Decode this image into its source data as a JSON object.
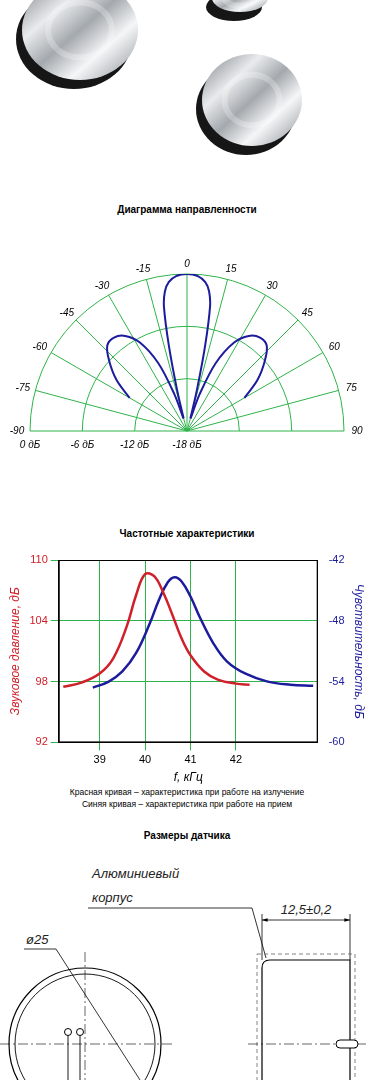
{
  "chart_data": [
    {
      "type": "polar",
      "title": "Диаграмма направленности",
      "thetalim": [
        -90,
        90
      ],
      "thetaticks": [
        -90,
        -75,
        -60,
        -45,
        -30,
        -15,
        0,
        15,
        30,
        45,
        60,
        75,
        90
      ],
      "rlim": [
        -18,
        0
      ],
      "rticks": [
        {
          "value": 0,
          "label": "0 дБ"
        },
        {
          "value": -6,
          "label": "-6 дБ"
        },
        {
          "value": -12,
          "label": "-12 дБ"
        },
        {
          "value": -18,
          "label": "-18 дБ"
        }
      ],
      "grid": true,
      "series": [
        {
          "color": "#1c1c9c",
          "theta": [
            -60,
            -54,
            -48,
            -43,
            -38,
            -33,
            -28,
            -23,
            -19,
            -16
          ],
          "values": [
            -10.4,
            -8,
            -6,
            -4.6,
            -4.4,
            -5,
            -6.5,
            -9.5,
            -13.5,
            -16.5
          ]
        },
        {
          "color": "#1c1c9c",
          "theta": [
            -15,
            -13.5,
            -12,
            -10.5,
            -9,
            -7,
            -4,
            0,
            4,
            7,
            9,
            10.5,
            12,
            13.5,
            15
          ],
          "values": [
            -16.5,
            -13,
            -8,
            -3.5,
            -1.8,
            -0.8,
            -0.2,
            0,
            -0.2,
            -0.8,
            -1.8,
            -3.5,
            -8,
            -13,
            -16.5
          ]
        },
        {
          "color": "#1c1c9c",
          "theta": [
            16,
            19,
            23,
            28,
            33,
            38,
            43,
            48,
            54,
            60
          ],
          "values": [
            -16.5,
            -13.5,
            -9.5,
            -6.5,
            -5,
            -4.4,
            -4.6,
            -6,
            -8,
            -10.4
          ]
        }
      ]
    },
    {
      "type": "line",
      "title": "Частотные характеристики",
      "x_label": "f, кГц",
      "y_label": "Звуковое давление, дБ",
      "y2_label": "Чувствительность, дБ",
      "xlim": [
        38.1,
        43.8
      ],
      "xticks": [
        39,
        40,
        41,
        42
      ],
      "ylim": [
        92,
        110
      ],
      "yticks": [
        92,
        98,
        104,
        110
      ],
      "y2lim": [
        -60,
        -42
      ],
      "y2ticks": [
        -60,
        -54,
        -48,
        -42
      ],
      "grid": true,
      "annotations": [
        "Красная кривая – характеристика при работе на излучение",
        "Синяя кривая – характеристика при работе на прием"
      ],
      "series": [
        {
          "color": "#d0202a",
          "x": [
            38.2,
            38.6,
            39.0,
            39.3,
            39.6,
            39.8,
            40.0,
            40.2,
            40.4,
            40.6,
            40.8,
            41.0,
            41.3,
            41.6,
            42.0,
            42.3
          ],
          "values": [
            97.5,
            97.9,
            98.8,
            100.3,
            103.5,
            106.5,
            108.6,
            108.4,
            106.8,
            104.6,
            102.3,
            100.6,
            99.0,
            98.2,
            97.8,
            97.7
          ]
        },
        {
          "color": "#1c1c9c",
          "axis": "y2",
          "x": [
            38.85,
            39.2,
            39.5,
            39.8,
            40.1,
            40.3,
            40.5,
            40.65,
            40.8,
            41.0,
            41.2,
            41.5,
            41.8,
            42.2,
            42.7,
            43.2,
            43.7
          ],
          "values": [
            -54.6,
            -54.0,
            -53.0,
            -51.2,
            -48.3,
            -46.0,
            -44.2,
            -43.7,
            -44.1,
            -45.6,
            -47.6,
            -50.2,
            -52.0,
            -53.2,
            -54.0,
            -54.3,
            -54.4
          ]
        }
      ]
    }
  ],
  "drawing": {
    "title": "Размеры датчика",
    "label": [
      "Алюминиевый",
      "корпус"
    ],
    "diameter": "ø25",
    "thickness": "12,5±0,2"
  }
}
